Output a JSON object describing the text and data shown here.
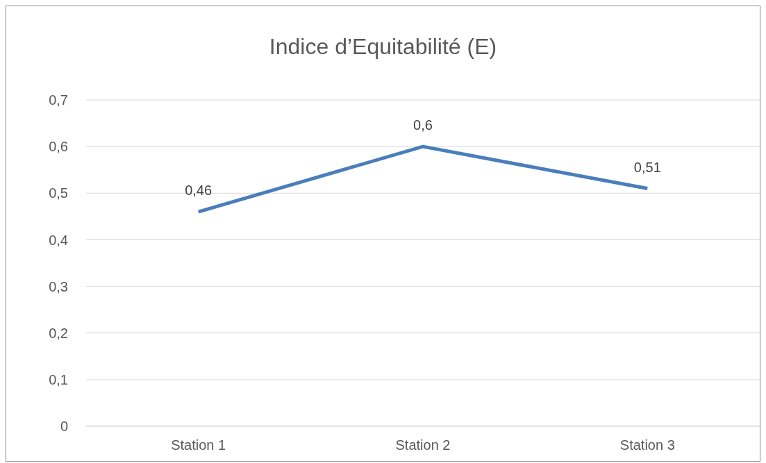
{
  "chart_data": {
    "type": "line",
    "title": "Indice d’Equitabilité (E)",
    "categories": [
      "Station 1",
      "Station 2",
      "Station 3"
    ],
    "series": [
      {
        "color": "#4a7ebb",
        "values": [
          0.46,
          0.6,
          0.51
        ]
      }
    ],
    "value_labels": [
      "0,46",
      "0,6",
      "0,51"
    ],
    "ylim": [
      0,
      0.7
    ],
    "yticks": [
      {
        "value": 0,
        "label": "0"
      },
      {
        "value": 0.1,
        "label": "0,1"
      },
      {
        "value": 0.2,
        "label": "0,2"
      },
      {
        "value": 0.3,
        "label": "0,3"
      },
      {
        "value": 0.4,
        "label": "0,4"
      },
      {
        "value": 0.5,
        "label": "0,5"
      },
      {
        "value": 0.6,
        "label": "0,6"
      },
      {
        "value": 0.7,
        "label": "0,7"
      }
    ],
    "grid": "y",
    "marker": "none",
    "line_style": "solid"
  }
}
